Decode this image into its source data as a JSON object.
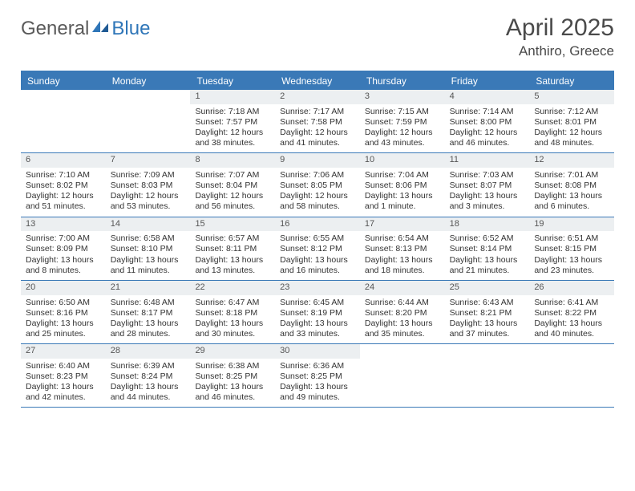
{
  "logo": {
    "text1": "General",
    "text2": "Blue"
  },
  "title": {
    "month": "April 2025",
    "location": "Anthiro, Greece"
  },
  "colors": {
    "header_bar": "#3a79b7",
    "daynum_bg": "#eceff1",
    "text": "#333333",
    "logo_gray": "#5a5a5a",
    "logo_blue": "#2f76b8"
  },
  "day_names": [
    "Sunday",
    "Monday",
    "Tuesday",
    "Wednesday",
    "Thursday",
    "Friday",
    "Saturday"
  ],
  "weeks": [
    [
      {
        "n": "",
        "sr": "",
        "ss": "",
        "dl1": "",
        "dl2": ""
      },
      {
        "n": "",
        "sr": "",
        "ss": "",
        "dl1": "",
        "dl2": ""
      },
      {
        "n": "1",
        "sr": "Sunrise: 7:18 AM",
        "ss": "Sunset: 7:57 PM",
        "dl1": "Daylight: 12 hours",
        "dl2": "and 38 minutes."
      },
      {
        "n": "2",
        "sr": "Sunrise: 7:17 AM",
        "ss": "Sunset: 7:58 PM",
        "dl1": "Daylight: 12 hours",
        "dl2": "and 41 minutes."
      },
      {
        "n": "3",
        "sr": "Sunrise: 7:15 AM",
        "ss": "Sunset: 7:59 PM",
        "dl1": "Daylight: 12 hours",
        "dl2": "and 43 minutes."
      },
      {
        "n": "4",
        "sr": "Sunrise: 7:14 AM",
        "ss": "Sunset: 8:00 PM",
        "dl1": "Daylight: 12 hours",
        "dl2": "and 46 minutes."
      },
      {
        "n": "5",
        "sr": "Sunrise: 7:12 AM",
        "ss": "Sunset: 8:01 PM",
        "dl1": "Daylight: 12 hours",
        "dl2": "and 48 minutes."
      }
    ],
    [
      {
        "n": "6",
        "sr": "Sunrise: 7:10 AM",
        "ss": "Sunset: 8:02 PM",
        "dl1": "Daylight: 12 hours",
        "dl2": "and 51 minutes."
      },
      {
        "n": "7",
        "sr": "Sunrise: 7:09 AM",
        "ss": "Sunset: 8:03 PM",
        "dl1": "Daylight: 12 hours",
        "dl2": "and 53 minutes."
      },
      {
        "n": "8",
        "sr": "Sunrise: 7:07 AM",
        "ss": "Sunset: 8:04 PM",
        "dl1": "Daylight: 12 hours",
        "dl2": "and 56 minutes."
      },
      {
        "n": "9",
        "sr": "Sunrise: 7:06 AM",
        "ss": "Sunset: 8:05 PM",
        "dl1": "Daylight: 12 hours",
        "dl2": "and 58 minutes."
      },
      {
        "n": "10",
        "sr": "Sunrise: 7:04 AM",
        "ss": "Sunset: 8:06 PM",
        "dl1": "Daylight: 13 hours",
        "dl2": "and 1 minute."
      },
      {
        "n": "11",
        "sr": "Sunrise: 7:03 AM",
        "ss": "Sunset: 8:07 PM",
        "dl1": "Daylight: 13 hours",
        "dl2": "and 3 minutes."
      },
      {
        "n": "12",
        "sr": "Sunrise: 7:01 AM",
        "ss": "Sunset: 8:08 PM",
        "dl1": "Daylight: 13 hours",
        "dl2": "and 6 minutes."
      }
    ],
    [
      {
        "n": "13",
        "sr": "Sunrise: 7:00 AM",
        "ss": "Sunset: 8:09 PM",
        "dl1": "Daylight: 13 hours",
        "dl2": "and 8 minutes."
      },
      {
        "n": "14",
        "sr": "Sunrise: 6:58 AM",
        "ss": "Sunset: 8:10 PM",
        "dl1": "Daylight: 13 hours",
        "dl2": "and 11 minutes."
      },
      {
        "n": "15",
        "sr": "Sunrise: 6:57 AM",
        "ss": "Sunset: 8:11 PM",
        "dl1": "Daylight: 13 hours",
        "dl2": "and 13 minutes."
      },
      {
        "n": "16",
        "sr": "Sunrise: 6:55 AM",
        "ss": "Sunset: 8:12 PM",
        "dl1": "Daylight: 13 hours",
        "dl2": "and 16 minutes."
      },
      {
        "n": "17",
        "sr": "Sunrise: 6:54 AM",
        "ss": "Sunset: 8:13 PM",
        "dl1": "Daylight: 13 hours",
        "dl2": "and 18 minutes."
      },
      {
        "n": "18",
        "sr": "Sunrise: 6:52 AM",
        "ss": "Sunset: 8:14 PM",
        "dl1": "Daylight: 13 hours",
        "dl2": "and 21 minutes."
      },
      {
        "n": "19",
        "sr": "Sunrise: 6:51 AM",
        "ss": "Sunset: 8:15 PM",
        "dl1": "Daylight: 13 hours",
        "dl2": "and 23 minutes."
      }
    ],
    [
      {
        "n": "20",
        "sr": "Sunrise: 6:50 AM",
        "ss": "Sunset: 8:16 PM",
        "dl1": "Daylight: 13 hours",
        "dl2": "and 25 minutes."
      },
      {
        "n": "21",
        "sr": "Sunrise: 6:48 AM",
        "ss": "Sunset: 8:17 PM",
        "dl1": "Daylight: 13 hours",
        "dl2": "and 28 minutes."
      },
      {
        "n": "22",
        "sr": "Sunrise: 6:47 AM",
        "ss": "Sunset: 8:18 PM",
        "dl1": "Daylight: 13 hours",
        "dl2": "and 30 minutes."
      },
      {
        "n": "23",
        "sr": "Sunrise: 6:45 AM",
        "ss": "Sunset: 8:19 PM",
        "dl1": "Daylight: 13 hours",
        "dl2": "and 33 minutes."
      },
      {
        "n": "24",
        "sr": "Sunrise: 6:44 AM",
        "ss": "Sunset: 8:20 PM",
        "dl1": "Daylight: 13 hours",
        "dl2": "and 35 minutes."
      },
      {
        "n": "25",
        "sr": "Sunrise: 6:43 AM",
        "ss": "Sunset: 8:21 PM",
        "dl1": "Daylight: 13 hours",
        "dl2": "and 37 minutes."
      },
      {
        "n": "26",
        "sr": "Sunrise: 6:41 AM",
        "ss": "Sunset: 8:22 PM",
        "dl1": "Daylight: 13 hours",
        "dl2": "and 40 minutes."
      }
    ],
    [
      {
        "n": "27",
        "sr": "Sunrise: 6:40 AM",
        "ss": "Sunset: 8:23 PM",
        "dl1": "Daylight: 13 hours",
        "dl2": "and 42 minutes."
      },
      {
        "n": "28",
        "sr": "Sunrise: 6:39 AM",
        "ss": "Sunset: 8:24 PM",
        "dl1": "Daylight: 13 hours",
        "dl2": "and 44 minutes."
      },
      {
        "n": "29",
        "sr": "Sunrise: 6:38 AM",
        "ss": "Sunset: 8:25 PM",
        "dl1": "Daylight: 13 hours",
        "dl2": "and 46 minutes."
      },
      {
        "n": "30",
        "sr": "Sunrise: 6:36 AM",
        "ss": "Sunset: 8:25 PM",
        "dl1": "Daylight: 13 hours",
        "dl2": "and 49 minutes."
      },
      {
        "n": "",
        "sr": "",
        "ss": "",
        "dl1": "",
        "dl2": ""
      },
      {
        "n": "",
        "sr": "",
        "ss": "",
        "dl1": "",
        "dl2": ""
      },
      {
        "n": "",
        "sr": "",
        "ss": "",
        "dl1": "",
        "dl2": ""
      }
    ]
  ]
}
